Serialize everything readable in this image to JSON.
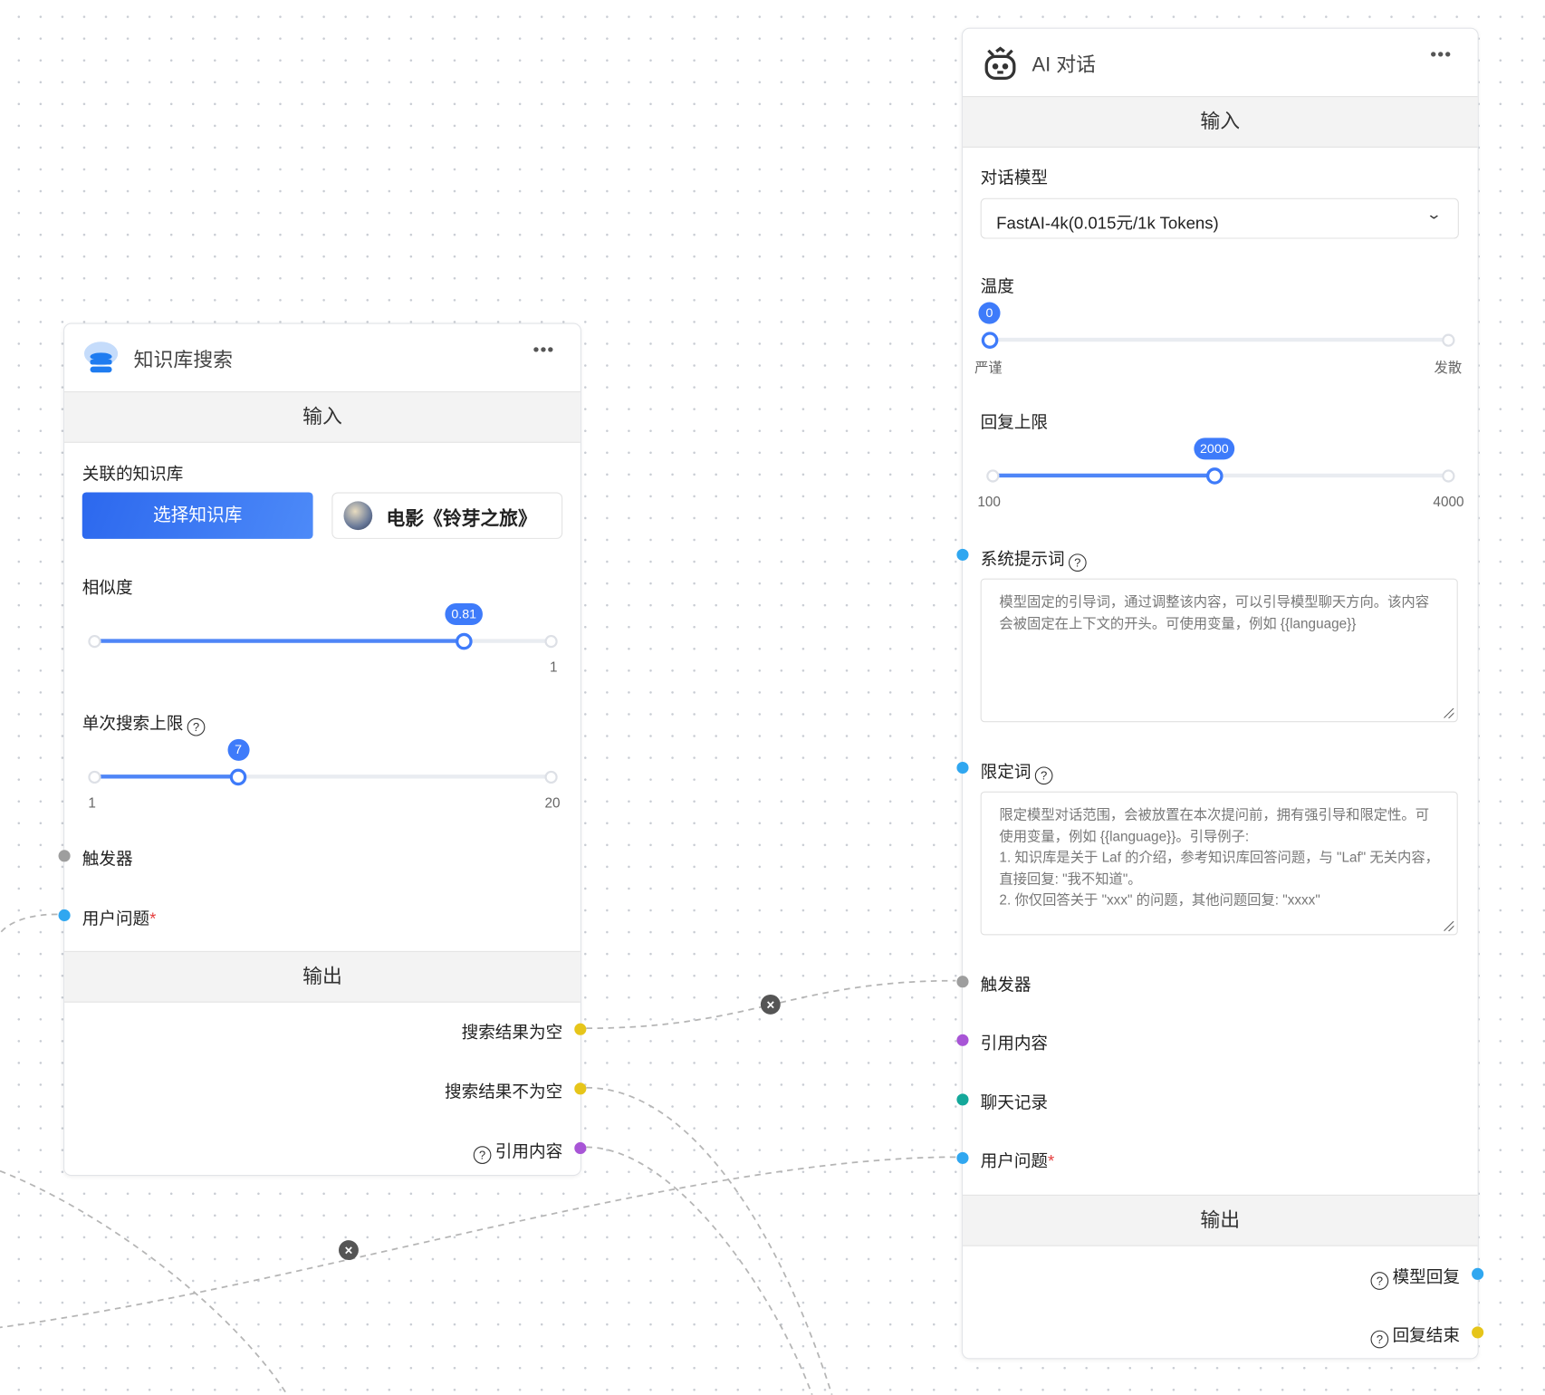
{
  "kb_node": {
    "title": "知识库搜索",
    "icon": "database-cloud-icon",
    "more": "•••",
    "input_section": "输入",
    "kb_label": "关联的知识库",
    "select_button": "选择知识库",
    "selected_kb": "电影《铃芽之旅》",
    "similarity": {
      "label": "相似度",
      "value": 0.81,
      "min": 0,
      "max": 1,
      "max_label": "1",
      "value_label": "0.81"
    },
    "limit": {
      "label": "单次搜索上限",
      "value": 7,
      "min": 1,
      "max": 20,
      "min_label": "1",
      "max_label": "20",
      "value_label": "7"
    },
    "inputs": [
      {
        "label": "触发器",
        "color": "#9e9e9e"
      },
      {
        "label": "用户问题",
        "required": "*",
        "color": "#30a7f0"
      }
    ],
    "output_section": "输出",
    "outputs": [
      {
        "label": "搜索结果为空",
        "color": "#e6c51a"
      },
      {
        "label": "搜索结果不为空",
        "color": "#e6c51a"
      },
      {
        "label": "引用内容",
        "color": "#a855d6",
        "help": "?"
      }
    ]
  },
  "ai_node": {
    "title": "AI 对话",
    "icon": "robot-icon",
    "more": "•••",
    "input_section": "输入",
    "model_label": "对话模型",
    "model_value": "FastAI-4k(0.015元/1k Tokens)",
    "temperature": {
      "label": "温度",
      "value": 0,
      "min": 0,
      "max": 10,
      "value_label": "0",
      "min_label": "严谨",
      "max_label": "发散"
    },
    "max_tokens": {
      "label": "回复上限",
      "value": 2000,
      "min": 100,
      "max": 4000,
      "value_label": "2000",
      "min_label": "100",
      "max_label": "4000"
    },
    "system_prompt": {
      "label": "系统提示词",
      "help": "?",
      "placeholder": "模型固定的引导词，通过调整该内容，可以引导模型聊天方向。该内容会被固定在上下文的开头。可使用变量，例如 {{language}}",
      "color": "#30a7f0"
    },
    "limit_prompt": {
      "label": "限定词",
      "help": "?",
      "placeholder": "限定模型对话范围，会被放置在本次提问前，拥有强引导和限定性。可使用变量，例如 {{language}}。引导例子:\n1. 知识库是关于 Laf 的介绍，参考知识库回答问题，与 \"Laf\" 无关内容，直接回复: \"我不知道\"。\n2. 你仅回答关于 \"xxx\" 的问题，其他问题回复: \"xxxx\"",
      "color": "#30a7f0"
    },
    "inputs": [
      {
        "label": "触发器",
        "color": "#9e9e9e"
      },
      {
        "label": "引用内容",
        "color": "#a855d6"
      },
      {
        "label": "聊天记录",
        "color": "#14a89a"
      },
      {
        "label": "用户问题",
        "required": "*",
        "color": "#30a7f0"
      }
    ],
    "output_section": "输出",
    "outputs": [
      {
        "label": "模型回复",
        "help": "?",
        "color": "#30a7f0"
      },
      {
        "label": "回复结束",
        "help": "?",
        "color": "#e6c51a"
      }
    ]
  },
  "edge_delete_icon": "×",
  "colors": {
    "accent": "#3e7bfa",
    "edge": "#b5b5b5"
  }
}
